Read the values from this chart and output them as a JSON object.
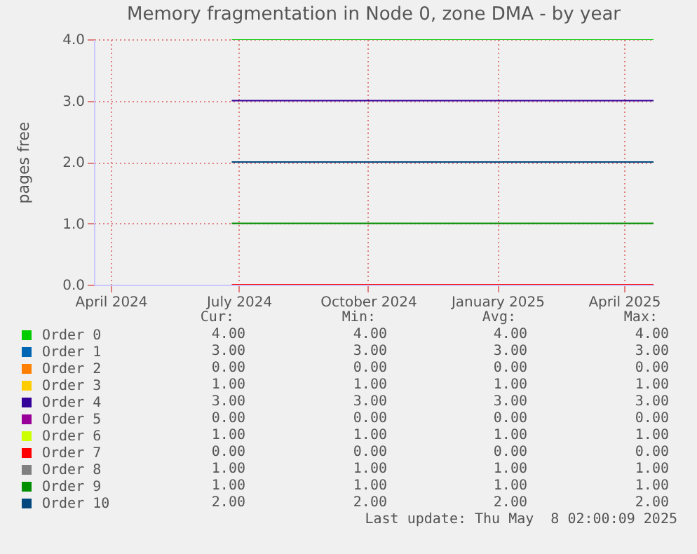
{
  "chart_data": {
    "type": "line",
    "title": "Memory fragmentation in Node 0, zone DMA - by year",
    "ylabel": "pages free",
    "x": [
      "2024-06-26",
      "2025-04-22"
    ],
    "xlim": [
      "2024-03-20",
      "2025-04-22"
    ],
    "xticks": [
      {
        "value": "2024-04-01",
        "label": "April 2024"
      },
      {
        "value": "2024-07-01",
        "label": "July 2024"
      },
      {
        "value": "2024-10-01",
        "label": "October 2024"
      },
      {
        "value": "2025-01-01",
        "label": "January 2025"
      },
      {
        "value": "2025-04-01",
        "label": "April 2025"
      }
    ],
    "ylim": [
      0,
      4
    ],
    "yticks": [
      {
        "value": 0,
        "label": "0.0"
      },
      {
        "value": 1,
        "label": "1.0"
      },
      {
        "value": 2,
        "label": "2.0"
      },
      {
        "value": 3,
        "label": "3.0"
      },
      {
        "value": 4,
        "label": "4.0"
      }
    ],
    "grid": true,
    "legend": "bottom",
    "series": [
      {
        "name": "Order 0",
        "color": "#00cc00",
        "values": [
          4,
          4
        ]
      },
      {
        "name": "Order 1",
        "color": "#0066b3",
        "values": [
          null,
          null
        ]
      },
      {
        "name": "Order 2",
        "color": "#ff8000",
        "values": [
          null,
          null
        ]
      },
      {
        "name": "Order 3",
        "color": "#ffcc00",
        "values": [
          null,
          null
        ]
      },
      {
        "name": "Order 4",
        "color": "#330099",
        "values": [
          3,
          3
        ]
      },
      {
        "name": "Order 5",
        "color": "#990099",
        "values": [
          null,
          null
        ]
      },
      {
        "name": "Order 6",
        "color": "#ccff00",
        "values": [
          null,
          null
        ]
      },
      {
        "name": "Order 7",
        "color": "#ff0000",
        "values": [
          0,
          0
        ]
      },
      {
        "name": "Order 8",
        "color": "#808080",
        "values": [
          null,
          null
        ]
      },
      {
        "name": "Order 9",
        "color": "#008f00",
        "values": [
          1,
          1
        ]
      },
      {
        "name": "Order 10",
        "color": "#00487d",
        "values": [
          2,
          2
        ]
      }
    ],
    "annotations": [
      "Cur:",
      "Min:",
      "Avg:",
      "Max:",
      "4.00",
      "4.00",
      "4.00",
      "4.00",
      "3.00",
      "3.00",
      "3.00",
      "3.00",
      "0.00",
      "0.00",
      "0.00",
      "0.00",
      "1.00",
      "1.00",
      "1.00",
      "1.00",
      "3.00",
      "3.00",
      "3.00",
      "3.00",
      "0.00",
      "0.00",
      "0.00",
      "0.00",
      "1.00",
      "1.00",
      "1.00",
      "1.00",
      "0.00",
      "0.00",
      "0.00",
      "0.00",
      "1.00",
      "1.00",
      "1.00",
      "1.00",
      "1.00",
      "1.00",
      "1.00",
      "1.00",
      "2.00",
      "2.00",
      "2.00",
      "2.00",
      "Last update: Thu May  8 02:00:09 2025"
    ]
  }
}
